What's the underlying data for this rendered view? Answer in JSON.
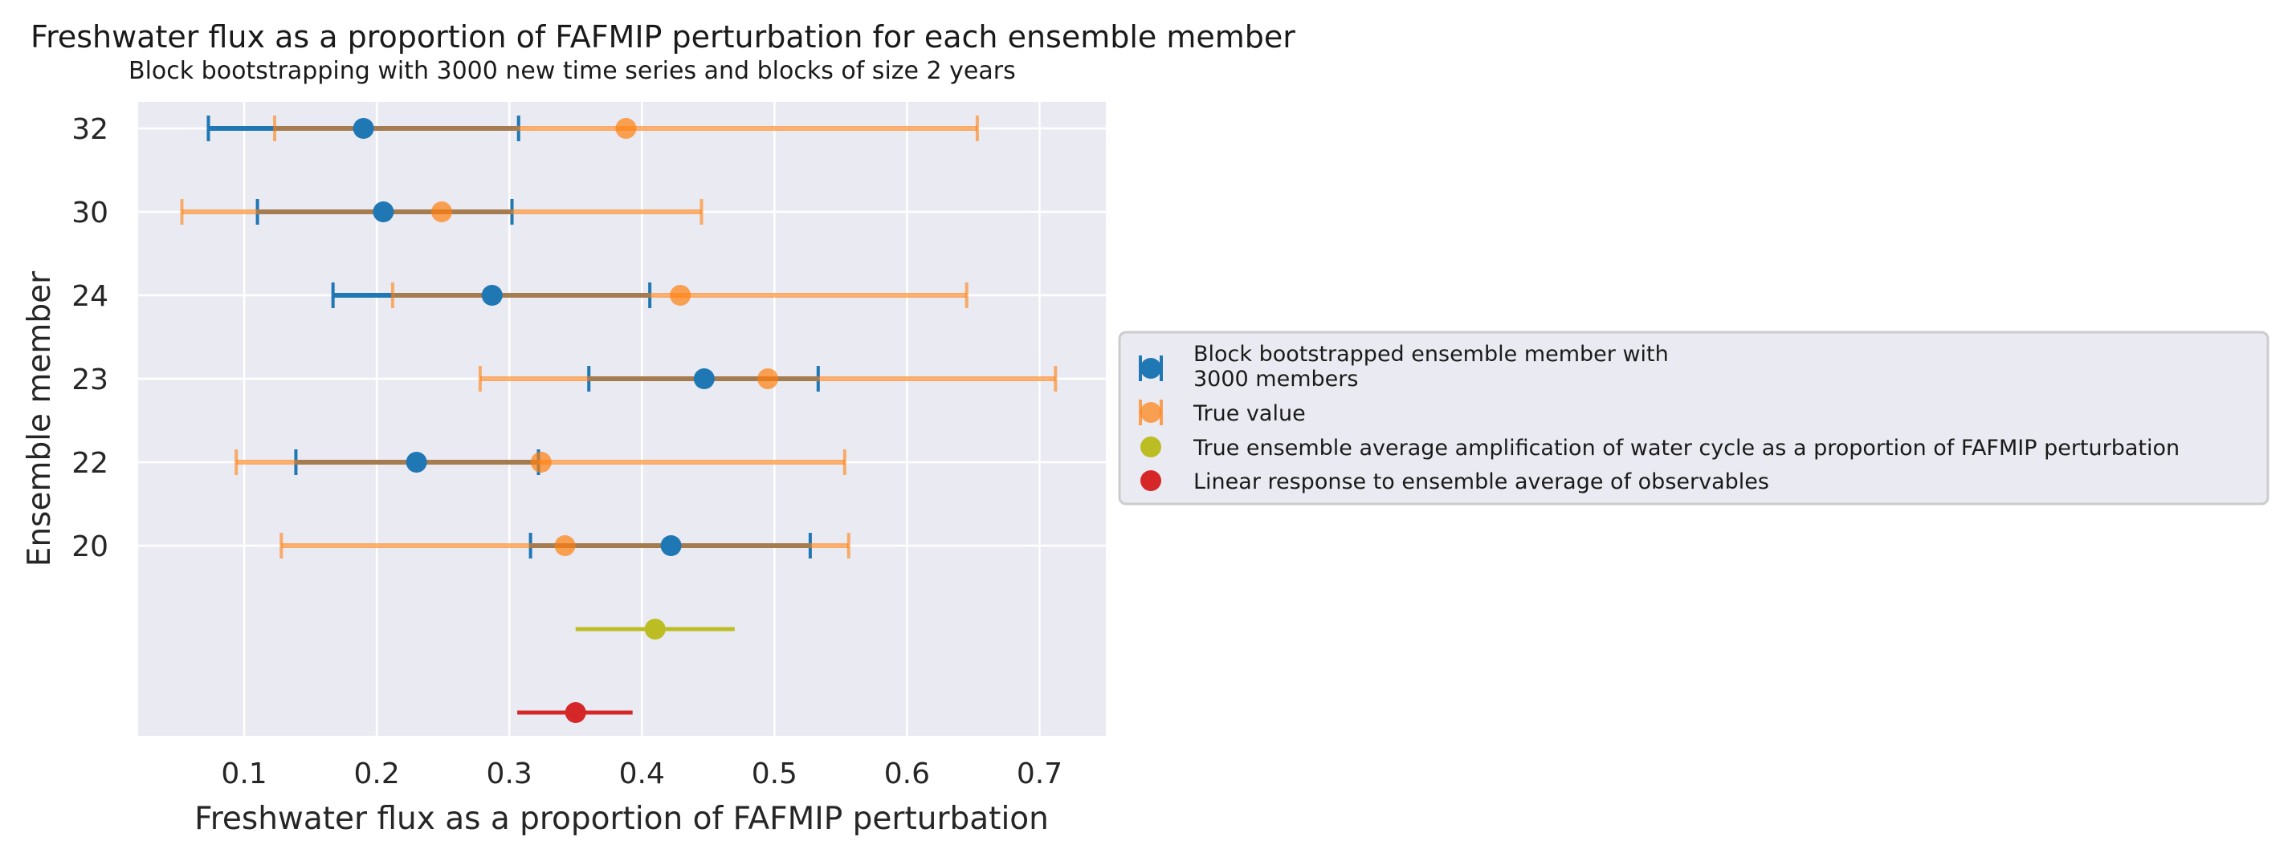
{
  "chart_data": {
    "type": "scatter",
    "title": "Freshwater flux as a proportion of FAFMIP perturbation for each ensemble member",
    "subtitle": "Block bootstrapping with 3000 new time series and blocks of size 2 years",
    "xlabel": "Freshwater flux as a proportion of FAFMIP perturbation",
    "ylabel": "Ensemble member",
    "xlim": [
      0.02,
      0.75
    ],
    "xticks": [
      "0.1",
      "0.2",
      "0.3",
      "0.4",
      "0.5",
      "0.6",
      "0.7"
    ],
    "yticks": [
      "32",
      "30",
      "24",
      "23",
      "22",
      "20"
    ],
    "grid": true,
    "legend_position": "center-right, outside plot",
    "colors": {
      "bootstrap": "#1f77b4",
      "true_value": "#ff7f0e",
      "ensemble_average": "#bcbd22",
      "linear_response": "#d62728",
      "axes_bg": "#eaeaf2"
    },
    "series": [
      {
        "name": "Block bootstrapped ensemble member with\n 3000 members",
        "label_lines": [
          "Block bootstrapped ensemble member with",
          " 3000 members"
        ],
        "points": [
          {
            "member": "32",
            "x": 0.19,
            "low": 0.073,
            "high": 0.307
          },
          {
            "member": "30",
            "x": 0.205,
            "low": 0.11,
            "high": 0.302
          },
          {
            "member": "24",
            "x": 0.287,
            "low": 0.167,
            "high": 0.406
          },
          {
            "member": "23",
            "x": 0.447,
            "low": 0.36,
            "high": 0.533
          },
          {
            "member": "22",
            "x": 0.23,
            "low": 0.139,
            "high": 0.322
          },
          {
            "member": "20",
            "x": 0.422,
            "low": 0.316,
            "high": 0.527
          }
        ]
      },
      {
        "name": "True value",
        "points": [
          {
            "member": "32",
            "x": 0.388,
            "low": 0.123,
            "high": 0.653
          },
          {
            "member": "30",
            "x": 0.249,
            "low": 0.053,
            "high": 0.445
          },
          {
            "member": "24",
            "x": 0.429,
            "low": 0.212,
            "high": 0.645
          },
          {
            "member": "23",
            "x": 0.495,
            "low": 0.278,
            "high": 0.712
          },
          {
            "member": "22",
            "x": 0.324,
            "low": 0.094,
            "high": 0.553
          },
          {
            "member": "20",
            "x": 0.342,
            "low": 0.128,
            "high": 0.556
          }
        ]
      },
      {
        "name": "True ensemble average amplification of water cycle as a proportion of FAFMIP perturbation",
        "points": [
          {
            "x": 0.41,
            "low": 0.35,
            "high": 0.47
          }
        ]
      },
      {
        "name": "Linear response to ensemble average of observables",
        "points": [
          {
            "x": 0.35,
            "low": 0.306,
            "high": 0.393
          }
        ]
      }
    ]
  }
}
